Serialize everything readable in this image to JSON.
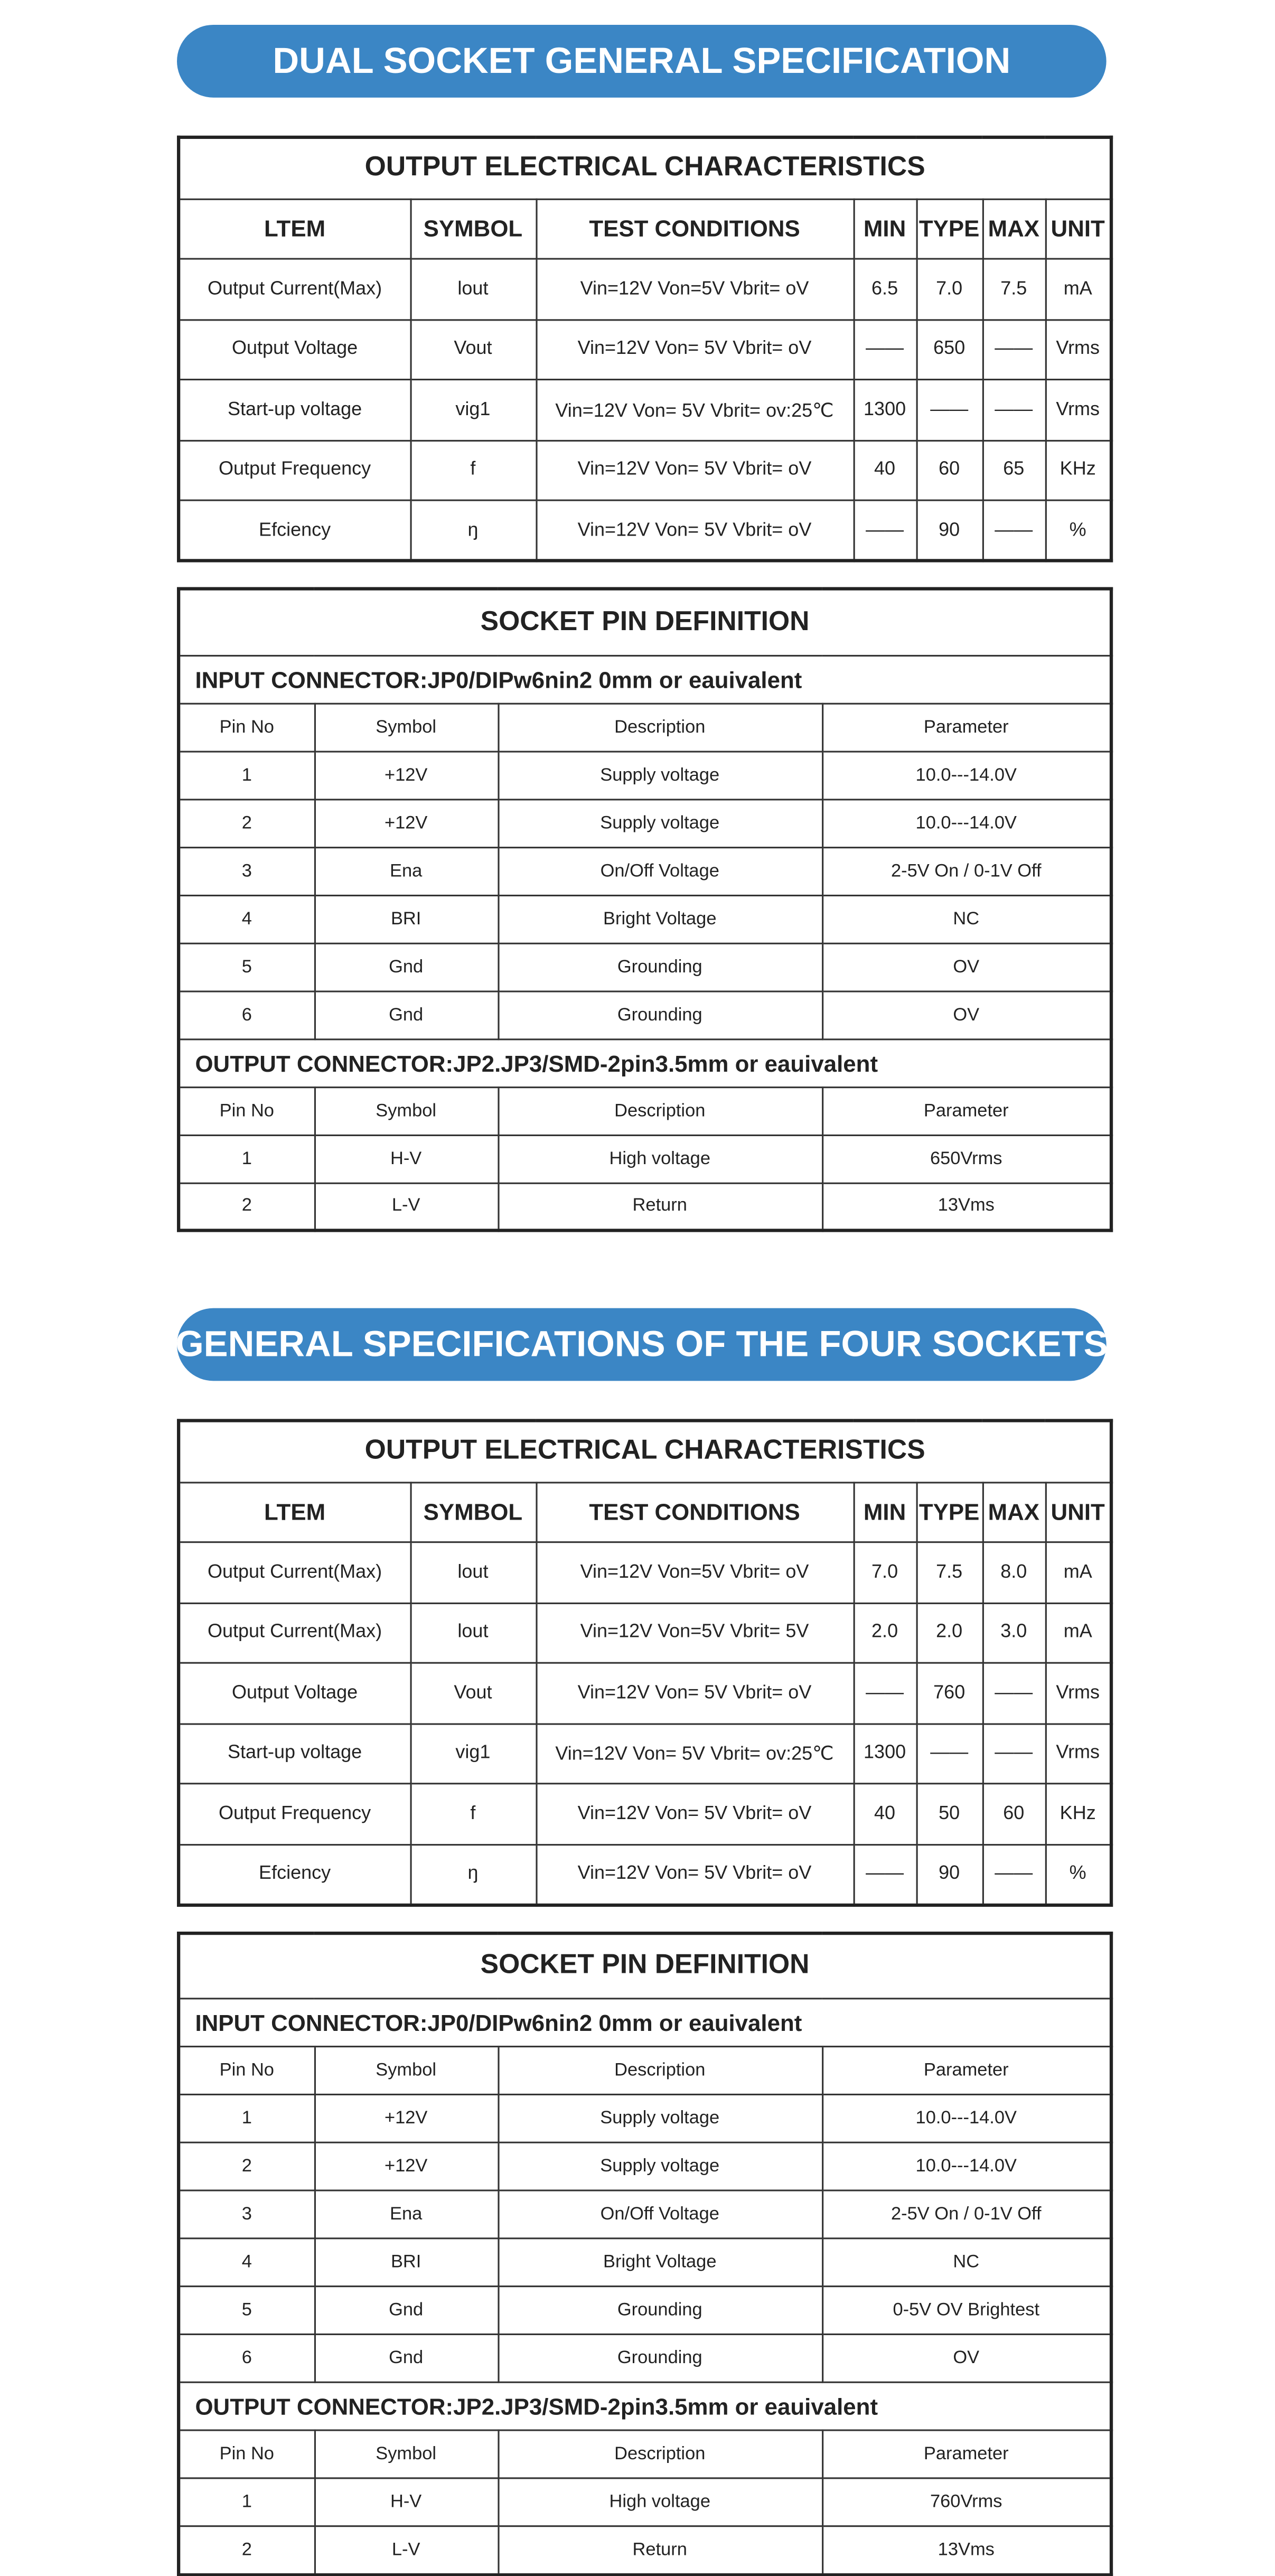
{
  "sections": [
    {
      "banner": "DUAL SOCKET GENERAL SPECIFICATION",
      "electrical": {
        "title": "OUTPUT ELECTRICAL CHARACTERISTICS",
        "header": [
          "LTEM",
          "SYMBOL",
          "TEST CONDITIONS",
          "MIN",
          "TYPE",
          "MAX",
          "UNIT"
        ],
        "rows": [
          [
            "Output Current(Max)",
            "lout",
            "Vin=12V Von=5V Vbrit= oV",
            "6.5",
            "7.0",
            "7.5",
            "mA"
          ],
          [
            "Output Voltage",
            "Vout",
            "Vin=12V Von= 5V Vbrit= oV",
            "——",
            "650",
            "——",
            "Vrms"
          ],
          [
            "Start-up voltage",
            "vig1",
            "Vin=12V Von= 5V Vbrit= ov:25℃",
            "1300",
            "——",
            "——",
            "Vrms"
          ],
          [
            "Output Frequency",
            "f",
            "Vin=12V Von= 5V Vbrit= oV",
            "40",
            "60",
            "65",
            "KHz"
          ],
          [
            "Efciency",
            "ŋ",
            "Vin=12V Von= 5V Vbrit= oV",
            "——",
            "90",
            "——",
            "%"
          ]
        ]
      },
      "pins": {
        "title": "SOCKET PIN DEFINITION",
        "input": {
          "heading": "INPUT CONNECTOR:JP0/DIPw6nin2 0mm or eauivalent",
          "header": [
            "Pin No",
            "Symbol",
            "Description",
            "Parameter"
          ],
          "rows": [
            [
              "1",
              "+12V",
              "Supply voltage",
              "10.0---14.0V"
            ],
            [
              "2",
              "+12V",
              "Supply voltage",
              "10.0---14.0V"
            ],
            [
              "3",
              "Ena",
              "On/Off Voltage",
              "2-5V On / 0-1V Off"
            ],
            [
              "4",
              "BRI",
              "Bright Voltage",
              "NC"
            ],
            [
              "5",
              "Gnd",
              "Grounding",
              "OV"
            ],
            [
              "6",
              "Gnd",
              "Grounding",
              "OV"
            ]
          ]
        },
        "output": {
          "heading": "OUTPUT CONNECTOR:JP2.JP3/SMD-2pin3.5mm or eauivalent",
          "header": [
            "Pin No",
            "Symbol",
            "Description",
            "Parameter"
          ],
          "rows": [
            [
              "1",
              "H-V",
              "High voltage",
              "650Vrms"
            ],
            [
              "2",
              "L-V",
              "Return",
              "13Vms"
            ]
          ]
        }
      }
    },
    {
      "banner": "GENERAL SPECIFICATIONS OF THE FOUR SOCKETS",
      "electrical": {
        "title": "OUTPUT ELECTRICAL CHARACTERISTICS",
        "header": [
          "LTEM",
          "SYMBOL",
          "TEST CONDITIONS",
          "MIN",
          "TYPE",
          "MAX",
          "UNIT"
        ],
        "rows": [
          [
            "Output Current(Max)",
            "lout",
            "Vin=12V Von=5V Vbrit= oV",
            "7.0",
            "7.5",
            "8.0",
            "mA"
          ],
          [
            "Output Current(Max)",
            "lout",
            "Vin=12V Von=5V Vbrit= 5V",
            "2.0",
            "2.0",
            "3.0",
            "mA"
          ],
          [
            "Output Voltage",
            "Vout",
            "Vin=12V Von= 5V Vbrit= oV",
            "——",
            "760",
            "——",
            "Vrms"
          ],
          [
            "Start-up voltage",
            "vig1",
            "Vin=12V Von= 5V Vbrit= ov:25℃",
            "1300",
            "——",
            "——",
            "Vrms"
          ],
          [
            "Output Frequency",
            "f",
            "Vin=12V Von= 5V Vbrit= oV",
            "40",
            "50",
            "60",
            "KHz"
          ],
          [
            "Efciency",
            "ŋ",
            "Vin=12V Von= 5V Vbrit= oV",
            "——",
            "90",
            "——",
            "%"
          ]
        ]
      },
      "pins": {
        "title": "SOCKET PIN DEFINITION",
        "input": {
          "heading": "INPUT CONNECTOR:JP0/DIPw6nin2 0mm or eauivalent",
          "header": [
            "Pin No",
            "Symbol",
            "Description",
            "Parameter"
          ],
          "rows": [
            [
              "1",
              "+12V",
              "Supply voltage",
              "10.0---14.0V"
            ],
            [
              "2",
              "+12V",
              "Supply voltage",
              "10.0---14.0V"
            ],
            [
              "3",
              "Ena",
              "On/Off Voltage",
              "2-5V On / 0-1V Off"
            ],
            [
              "4",
              "BRI",
              "Bright Voltage",
              "NC"
            ],
            [
              "5",
              "Gnd",
              "Grounding",
              "0-5V OV Brightest"
            ],
            [
              "6",
              "Gnd",
              "Grounding",
              "OV"
            ]
          ]
        },
        "output": {
          "heading": "OUTPUT CONNECTOR:JP2.JP3/SMD-2pin3.5mm or eauivalent",
          "header": [
            "Pin No",
            "Symbol",
            "Description",
            "Parameter"
          ],
          "rows": [
            [
              "1",
              "H-V",
              "High voltage",
              "760Vrms"
            ],
            [
              "2",
              "L-V",
              "Return",
              "13Vms"
            ]
          ]
        }
      }
    }
  ]
}
